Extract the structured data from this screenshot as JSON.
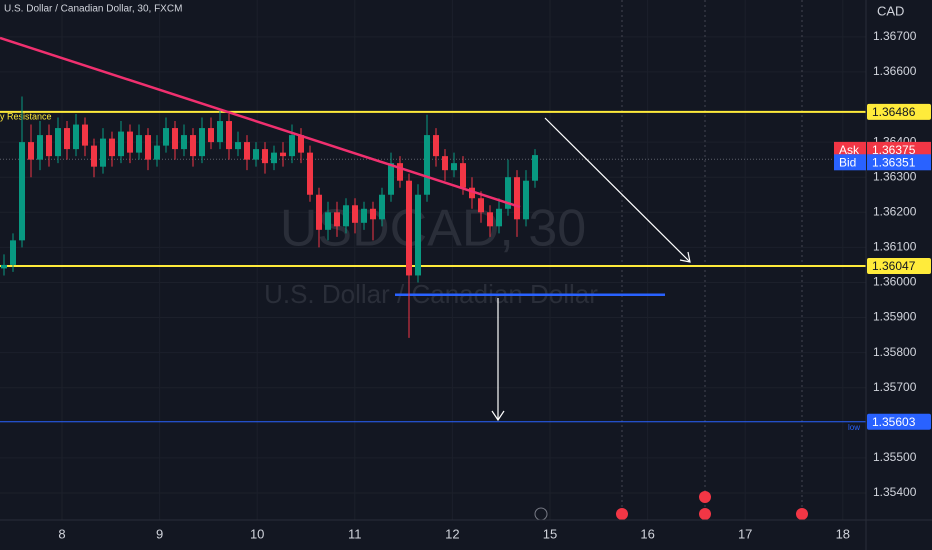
{
  "chart_data": {
    "type": "candlestick",
    "title": "U.S. Dollar / Canadian Dollar, 30, FXCM",
    "watermark": "USDCAD, 30",
    "watermark_sub": "U.S. Dollar / Canadian Dollar",
    "currency": "CAD",
    "ylim": [
      1.35323,
      1.36805
    ],
    "yticks": [
      {
        "value": 1.367,
        "label": "1.36700"
      },
      {
        "value": 1.366,
        "label": "1.36600"
      },
      {
        "value": 1.364,
        "label": "1.36400"
      },
      {
        "value": 1.363,
        "label": "1.36300"
      },
      {
        "value": 1.362,
        "label": "1.36200"
      },
      {
        "value": 1.361,
        "label": "1.36100"
      },
      {
        "value": 1.36,
        "label": "1.36000"
      },
      {
        "value": 1.359,
        "label": "1.35900"
      },
      {
        "value": 1.358,
        "label": "1.35800"
      },
      {
        "value": 1.357,
        "label": "1.35700"
      },
      {
        "value": 1.355,
        "label": "1.35500"
      },
      {
        "value": 1.354,
        "label": "1.35400"
      }
    ],
    "xaxis_labels": [
      "8",
      "9",
      "10",
      "11",
      "12",
      "15",
      "16",
      "17",
      "18"
    ],
    "up_color": "#089981",
    "down_color": "#f23645",
    "candles": {
      "open": [
        1.3604,
        1.3605,
        1.3612,
        1.364,
        1.3635,
        1.3642,
        1.3636,
        1.3644,
        1.3638,
        1.3645,
        1.3639,
        1.3633,
        1.3641,
        1.3636,
        1.3643,
        1.3637,
        1.3642,
        1.3635,
        1.3639,
        1.3644,
        1.3638,
        1.3642,
        1.3636,
        1.3644,
        1.364,
        1.3646,
        1.3638,
        1.364,
        1.3635,
        1.3638,
        1.3634,
        1.3637,
        1.3636,
        1.3642,
        1.3637,
        1.3625,
        1.3615,
        1.362,
        1.3616,
        1.3622,
        1.3617,
        1.3621,
        1.3618,
        1.3625,
        1.3634,
        1.3629,
        1.3602,
        1.3625,
        1.3642,
        1.3636,
        1.3632,
        1.3634,
        1.3627,
        1.3624,
        1.362,
        1.3616,
        1.3621,
        1.363,
        1.3618,
        1.3629
      ],
      "high": [
        1.3608,
        1.3614,
        1.3653,
        1.3645,
        1.3646,
        1.3645,
        1.3647,
        1.3646,
        1.3648,
        1.3647,
        1.3641,
        1.3644,
        1.3643,
        1.3646,
        1.3645,
        1.3645,
        1.3644,
        1.3642,
        1.3647,
        1.3646,
        1.3645,
        1.3644,
        1.3647,
        1.3647,
        1.3649,
        1.3648,
        1.3643,
        1.3642,
        1.364,
        1.364,
        1.3639,
        1.364,
        1.3645,
        1.3644,
        1.3639,
        1.3627,
        1.3623,
        1.3623,
        1.3624,
        1.3624,
        1.3623,
        1.3623,
        1.3627,
        1.3637,
        1.3636,
        1.3631,
        1.3628,
        1.36478,
        1.3644,
        1.3638,
        1.3637,
        1.3636,
        1.363,
        1.3626,
        1.3622,
        1.3624,
        1.3635,
        1.3632,
        1.3632,
        1.3638
      ],
      "low": [
        1.3602,
        1.3603,
        1.361,
        1.363,
        1.3632,
        1.3633,
        1.3634,
        1.3635,
        1.3636,
        1.3636,
        1.363,
        1.3631,
        1.3633,
        1.3634,
        1.3634,
        1.3635,
        1.3632,
        1.3633,
        1.3637,
        1.3635,
        1.3636,
        1.3633,
        1.3634,
        1.3638,
        1.3638,
        1.3635,
        1.3636,
        1.3632,
        1.3633,
        1.3631,
        1.3632,
        1.3633,
        1.3634,
        1.3634,
        1.3623,
        1.361,
        1.3612,
        1.3613,
        1.3614,
        1.3614,
        1.3615,
        1.3612,
        1.3616,
        1.3623,
        1.3627,
        1.35842,
        1.36,
        1.3623,
        1.3633,
        1.3629,
        1.363,
        1.3625,
        1.3621,
        1.3617,
        1.3613,
        1.3614,
        1.3619,
        1.3613,
        1.3616,
        1.3627
      ],
      "close": [
        1.3605,
        1.3612,
        1.364,
        1.3635,
        1.3642,
        1.3636,
        1.3644,
        1.3638,
        1.3645,
        1.3639,
        1.3633,
        1.3641,
        1.3636,
        1.3643,
        1.3637,
        1.3642,
        1.3635,
        1.3639,
        1.3644,
        1.3638,
        1.3642,
        1.3636,
        1.3644,
        1.364,
        1.3646,
        1.3638,
        1.364,
        1.3635,
        1.3638,
        1.3634,
        1.3637,
        1.3636,
        1.3642,
        1.3637,
        1.3625,
        1.3615,
        1.362,
        1.3616,
        1.3622,
        1.3617,
        1.3621,
        1.3618,
        1.3625,
        1.3634,
        1.3629,
        1.3602,
        1.3625,
        1.3642,
        1.3636,
        1.3632,
        1.3634,
        1.3627,
        1.3624,
        1.362,
        1.3616,
        1.3621,
        1.363,
        1.3618,
        1.3629,
        1.36363
      ]
    },
    "resistance": 1.36486,
    "resistance_label": "ly Resistance",
    "support": 1.36047,
    "low_level": 1.35603,
    "low_label": "low",
    "blue_level": 1.35965,
    "trendline": [
      1.36697,
      1.36215
    ],
    "ask_label": "Ask",
    "ask": 1.36375,
    "bid_label": "Bid",
    "bid": 1.36351,
    "level_color": "#ffeb3b",
    "trend_color": "#f0306f"
  }
}
